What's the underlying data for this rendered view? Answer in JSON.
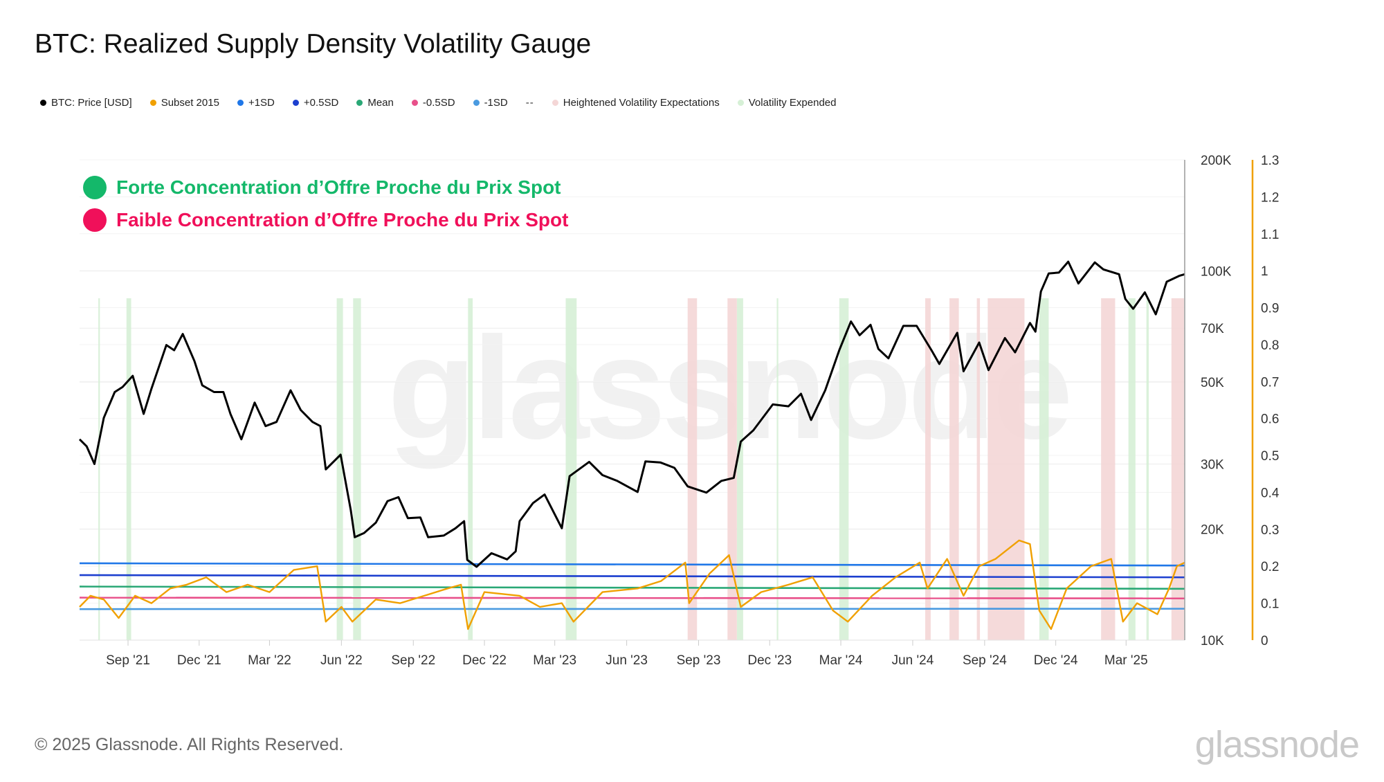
{
  "title": "BTC: Realized Supply Density Volatility Gauge",
  "legend": [
    {
      "label": "BTC: Price [USD]",
      "color": "#000000",
      "marker": "dot"
    },
    {
      "label": "Subset 2015",
      "color": "#f0a000",
      "marker": "dot"
    },
    {
      "label": "+1SD",
      "color": "#1f77e8",
      "marker": "dot"
    },
    {
      "label": "+0.5SD",
      "color": "#1c3fcf",
      "marker": "dot"
    },
    {
      "label": "Mean",
      "color": "#2aa876",
      "marker": "dot"
    },
    {
      "label": "-0.5SD",
      "color": "#e8508a",
      "marker": "dot"
    },
    {
      "label": "-1SD",
      "color": "#4a9ae0",
      "marker": "dot"
    },
    {
      "label": "--",
      "color": "#333333",
      "marker": "text"
    },
    {
      "label": "Heightened Volatility Expectations",
      "color": "#f4d6d6",
      "marker": "dot"
    },
    {
      "label": "Volatility Expended",
      "color": "#d6f0d6",
      "marker": "dot"
    }
  ],
  "annotations": [
    {
      "text": "Forte Concentration d’Offre Proche du Prix Spot",
      "color": "#14b86a"
    },
    {
      "text": "Faible Concentration d’Offre Proche du Prix Spot",
      "color": "#f0105a"
    }
  ],
  "footer": "© 2025 Glassnode. All Rights Reserved.",
  "brand": "glassnode",
  "watermark": "glassnode",
  "chart_data": {
    "type": "line",
    "title": "BTC: Realized Supply Density Volatility Gauge",
    "x_range": [
      "2021-07-01",
      "2025-05-15"
    ],
    "x_tick_labels": [
      "Sep '21",
      "Dec '21",
      "Mar '22",
      "Jun '22",
      "Sep '22",
      "Dec '22",
      "Mar '23",
      "Jun '23",
      "Sep '23",
      "Dec '23",
      "Mar '24",
      "Jun '24",
      "Sep '24",
      "Dec '24",
      "Mar '25"
    ],
    "x_tick_dates": [
      "2021-09-01",
      "2021-12-01",
      "2022-03-01",
      "2022-06-01",
      "2022-09-01",
      "2022-12-01",
      "2023-03-01",
      "2023-06-01",
      "2023-09-01",
      "2023-12-01",
      "2024-03-01",
      "2024-06-01",
      "2024-09-01",
      "2024-12-01",
      "2025-03-01"
    ],
    "y_left": {
      "scale": "log",
      "range": [
        10000,
        200000
      ],
      "tick_values": [
        10000,
        20000,
        30000,
        50000,
        70000,
        100000,
        200000
      ],
      "tick_labels": [
        "10K",
        "20K",
        "30K",
        "50K",
        "70K",
        "100K",
        "200K"
      ]
    },
    "y_right": {
      "scale": "linear",
      "range": [
        0,
        1.3
      ],
      "tick_values": [
        0,
        0.1,
        0.2,
        0.3,
        0.4,
        0.5,
        0.6,
        0.7,
        0.8,
        0.9,
        1,
        1.1,
        1.2,
        1.3
      ],
      "tick_labels": [
        "0",
        "0.1",
        "0.2",
        "0.3",
        "0.4",
        "0.5",
        "0.6",
        "0.7",
        "0.8",
        "0.9",
        "1",
        "1.1",
        "1.2",
        "1.3"
      ]
    },
    "price_series": {
      "name": "BTC: Price [USD]",
      "axis": "left",
      "color": "#000000",
      "points": [
        [
          "2021-07-01",
          35000
        ],
        [
          "2021-07-10",
          33500
        ],
        [
          "2021-07-20",
          30000
        ],
        [
          "2021-08-01",
          40000
        ],
        [
          "2021-08-15",
          47000
        ],
        [
          "2021-08-25",
          48500
        ],
        [
          "2021-09-07",
          52000
        ],
        [
          "2021-09-21",
          41000
        ],
        [
          "2021-10-01",
          48000
        ],
        [
          "2021-10-20",
          63000
        ],
        [
          "2021-10-30",
          61000
        ],
        [
          "2021-11-10",
          67500
        ],
        [
          "2021-11-25",
          57000
        ],
        [
          "2021-12-05",
          49000
        ],
        [
          "2021-12-20",
          47000
        ],
        [
          "2022-01-01",
          47000
        ],
        [
          "2022-01-10",
          41000
        ],
        [
          "2022-01-24",
          35000
        ],
        [
          "2022-02-10",
          44000
        ],
        [
          "2022-02-24",
          38000
        ],
        [
          "2022-03-10",
          39000
        ],
        [
          "2022-03-28",
          47500
        ],
        [
          "2022-04-10",
          42000
        ],
        [
          "2022-04-25",
          39000
        ],
        [
          "2022-05-05",
          38000
        ],
        [
          "2022-05-12",
          29000
        ],
        [
          "2022-05-31",
          31800
        ],
        [
          "2022-06-13",
          22500
        ],
        [
          "2022-06-18",
          19000
        ],
        [
          "2022-06-30",
          19500
        ],
        [
          "2022-07-15",
          20800
        ],
        [
          "2022-07-30",
          23800
        ],
        [
          "2022-08-13",
          24400
        ],
        [
          "2022-08-25",
          21400
        ],
        [
          "2022-09-10",
          21500
        ],
        [
          "2022-09-20",
          19000
        ],
        [
          "2022-10-10",
          19200
        ],
        [
          "2022-10-25",
          20100
        ],
        [
          "2022-11-05",
          21000
        ],
        [
          "2022-11-09",
          16500
        ],
        [
          "2022-11-21",
          15800
        ],
        [
          "2022-12-10",
          17200
        ],
        [
          "2022-12-30",
          16550
        ],
        [
          "2023-01-10",
          17400
        ],
        [
          "2023-01-15",
          21000
        ],
        [
          "2023-02-01",
          23500
        ],
        [
          "2023-02-16",
          24800
        ],
        [
          "2023-03-10",
          20100
        ],
        [
          "2023-03-20",
          27800
        ],
        [
          "2023-04-14",
          30400
        ],
        [
          "2023-05-01",
          28000
        ],
        [
          "2023-05-20",
          27000
        ],
        [
          "2023-06-15",
          25200
        ],
        [
          "2023-06-25",
          30500
        ],
        [
          "2023-07-14",
          30300
        ],
        [
          "2023-08-01",
          29300
        ],
        [
          "2023-08-18",
          26100
        ],
        [
          "2023-09-11",
          25100
        ],
        [
          "2023-09-30",
          27000
        ],
        [
          "2023-10-16",
          27500
        ],
        [
          "2023-10-25",
          34500
        ],
        [
          "2023-11-10",
          37000
        ],
        [
          "2023-12-05",
          43500
        ],
        [
          "2023-12-25",
          43000
        ],
        [
          "2024-01-10",
          46500
        ],
        [
          "2024-01-23",
          39500
        ],
        [
          "2024-02-10",
          47500
        ],
        [
          "2024-02-28",
          61000
        ],
        [
          "2024-03-14",
          73000
        ],
        [
          "2024-03-25",
          67000
        ],
        [
          "2024-04-08",
          71500
        ],
        [
          "2024-04-18",
          61500
        ],
        [
          "2024-05-01",
          58000
        ],
        [
          "2024-05-20",
          71000
        ],
        [
          "2024-06-06",
          71000
        ],
        [
          "2024-06-25",
          61000
        ],
        [
          "2024-07-05",
          56000
        ],
        [
          "2024-07-28",
          68000
        ],
        [
          "2024-08-05",
          53500
        ],
        [
          "2024-08-25",
          64000
        ],
        [
          "2024-09-06",
          53900
        ],
        [
          "2024-09-27",
          65800
        ],
        [
          "2024-10-10",
          60200
        ],
        [
          "2024-10-29",
          72300
        ],
        [
          "2024-11-05",
          68500
        ],
        [
          "2024-11-12",
          88000
        ],
        [
          "2024-11-22",
          98500
        ],
        [
          "2024-12-05",
          99000
        ],
        [
          "2024-12-17",
          106000
        ],
        [
          "2024-12-30",
          92500
        ],
        [
          "2025-01-20",
          105500
        ],
        [
          "2025-01-31",
          101000
        ],
        [
          "2025-02-20",
          98000
        ],
        [
          "2025-02-28",
          84000
        ],
        [
          "2025-03-10",
          79000
        ],
        [
          "2025-03-25",
          87500
        ],
        [
          "2025-04-08",
          76300
        ],
        [
          "2025-04-22",
          93500
        ],
        [
          "2025-05-08",
          97000
        ],
        [
          "2025-05-15",
          98000
        ]
      ]
    },
    "gauge_series": {
      "name": "Subset 2015",
      "axis": "right",
      "color": "#f0a000",
      "points": [
        [
          "2021-07-01",
          0.09
        ],
        [
          "2021-07-15",
          0.12
        ],
        [
          "2021-08-01",
          0.11
        ],
        [
          "2021-08-20",
          0.06
        ],
        [
          "2021-09-10",
          0.12
        ],
        [
          "2021-10-01",
          0.1
        ],
        [
          "2021-10-25",
          0.14
        ],
        [
          "2021-11-15",
          0.15
        ],
        [
          "2021-12-10",
          0.17
        ],
        [
          "2022-01-05",
          0.13
        ],
        [
          "2022-02-01",
          0.15
        ],
        [
          "2022-03-01",
          0.13
        ],
        [
          "2022-04-01",
          0.19
        ],
        [
          "2022-05-01",
          0.2
        ],
        [
          "2022-05-12",
          0.05
        ],
        [
          "2022-06-01",
          0.09
        ],
        [
          "2022-06-15",
          0.05
        ],
        [
          "2022-07-15",
          0.11
        ],
        [
          "2022-08-15",
          0.1
        ],
        [
          "2022-09-15",
          0.12
        ],
        [
          "2022-10-15",
          0.14
        ],
        [
          "2022-11-01",
          0.15
        ],
        [
          "2022-11-10",
          0.03
        ],
        [
          "2022-12-01",
          0.13
        ],
        [
          "2023-01-15",
          0.12
        ],
        [
          "2023-02-10",
          0.09
        ],
        [
          "2023-03-10",
          0.1
        ],
        [
          "2023-03-25",
          0.05
        ],
        [
          "2023-05-01",
          0.13
        ],
        [
          "2023-06-15",
          0.14
        ],
        [
          "2023-07-15",
          0.16
        ],
        [
          "2023-08-15",
          0.21
        ],
        [
          "2023-08-20",
          0.1
        ],
        [
          "2023-09-15",
          0.18
        ],
        [
          "2023-10-10",
          0.23
        ],
        [
          "2023-10-25",
          0.09
        ],
        [
          "2023-11-20",
          0.13
        ],
        [
          "2023-12-25",
          0.15
        ],
        [
          "2024-01-25",
          0.17
        ],
        [
          "2024-02-20",
          0.08
        ],
        [
          "2024-03-10",
          0.05
        ],
        [
          "2024-04-10",
          0.12
        ],
        [
          "2024-05-10",
          0.17
        ],
        [
          "2024-06-10",
          0.21
        ],
        [
          "2024-06-20",
          0.14
        ],
        [
          "2024-07-15",
          0.22
        ],
        [
          "2024-08-05",
          0.12
        ],
        [
          "2024-08-25",
          0.2
        ],
        [
          "2024-09-15",
          0.22
        ],
        [
          "2024-10-15",
          0.27
        ],
        [
          "2024-10-29",
          0.26
        ],
        [
          "2024-11-10",
          0.08
        ],
        [
          "2024-11-25",
          0.03
        ],
        [
          "2024-12-15",
          0.14
        ],
        [
          "2025-01-15",
          0.2
        ],
        [
          "2025-02-10",
          0.22
        ],
        [
          "2025-02-25",
          0.05
        ],
        [
          "2025-03-15",
          0.1
        ],
        [
          "2025-04-10",
          0.07
        ],
        [
          "2025-04-25",
          0.14
        ],
        [
          "2025-05-05",
          0.2
        ],
        [
          "2025-05-15",
          0.21
        ]
      ]
    },
    "band_lines": [
      {
        "name": "+1SD",
        "color": "#1f77e8",
        "value_start": 0.208,
        "value_end": 0.202
      },
      {
        "name": "+0.5SD",
        "color": "#1c3fcf",
        "value_start": 0.176,
        "value_end": 0.17
      },
      {
        "name": "Mean",
        "color": "#2aa876",
        "value_start": 0.145,
        "value_end": 0.139
      },
      {
        "name": "-0.5SD",
        "color": "#e8508a",
        "value_start": 0.115,
        "value_end": 0.113
      },
      {
        "name": "-1SD",
        "color": "#4a9ae0",
        "value_start": 0.084,
        "value_end": 0.085
      }
    ],
    "shaded_regions": {
      "volatility_expended": [
        [
          "2021-07-25",
          "2021-07-27"
        ],
        [
          "2021-08-30",
          "2021-09-05"
        ],
        [
          "2022-05-26",
          "2022-06-03"
        ],
        [
          "2022-06-16",
          "2022-06-26"
        ],
        [
          "2022-11-10",
          "2022-11-16"
        ],
        [
          "2023-03-15",
          "2023-03-29"
        ],
        [
          "2023-10-20",
          "2023-10-28"
        ],
        [
          "2023-12-10",
          "2023-12-12"
        ],
        [
          "2024-02-28",
          "2024-03-11"
        ],
        [
          "2024-11-10",
          "2024-11-22"
        ],
        [
          "2025-03-04",
          "2025-03-13"
        ],
        [
          "2025-03-27",
          "2025-03-30"
        ]
      ],
      "heightened_volatility": [
        [
          "2023-08-18",
          "2023-08-30"
        ],
        [
          "2023-10-08",
          "2023-10-20"
        ],
        [
          "2024-06-17",
          "2024-06-24"
        ],
        [
          "2024-07-18",
          "2024-07-30"
        ],
        [
          "2024-08-22",
          "2024-08-26"
        ],
        [
          "2024-09-05",
          "2024-10-22"
        ],
        [
          "2025-01-28",
          "2025-02-15"
        ],
        [
          "2025-04-28",
          "2025-05-14"
        ]
      ]
    }
  }
}
